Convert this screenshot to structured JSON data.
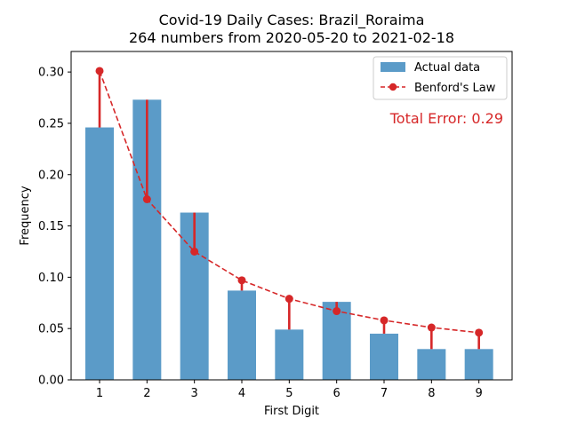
{
  "chart_data": {
    "type": "bar",
    "title": "Covid-19 Daily Cases: Brazil_Roraima",
    "subtitle": "264 numbers from 2020-05-20 to 2021-02-18",
    "xlabel": "First Digit",
    "ylabel": "Frequency",
    "categories": [
      "1",
      "2",
      "3",
      "4",
      "5",
      "6",
      "7",
      "8",
      "9"
    ],
    "x": [
      1,
      2,
      3,
      4,
      5,
      6,
      7,
      8,
      9
    ],
    "xlim": [
      0.4,
      9.7
    ],
    "ylim": [
      0,
      0.32
    ],
    "yticks": [
      0.0,
      0.05,
      0.1,
      0.15,
      0.2,
      0.25,
      0.3
    ],
    "ytick_labels": [
      "0.00",
      "0.05",
      "0.10",
      "0.15",
      "0.20",
      "0.25",
      "0.30"
    ],
    "series": [
      {
        "name": "Actual data",
        "kind": "bar",
        "color": "#5b9bc8",
        "values": [
          0.246,
          0.273,
          0.163,
          0.087,
          0.049,
          0.076,
          0.045,
          0.03,
          0.03
        ]
      },
      {
        "name": "Benford's Law",
        "kind": "line",
        "color": "#d62728",
        "values": [
          0.301,
          0.176,
          0.125,
          0.097,
          0.079,
          0.067,
          0.058,
          0.051,
          0.046
        ]
      }
    ],
    "annotation": {
      "text": "Total Error: 0.29",
      "color": "#d62728"
    },
    "legend_position": "top-right",
    "grid": false
  }
}
